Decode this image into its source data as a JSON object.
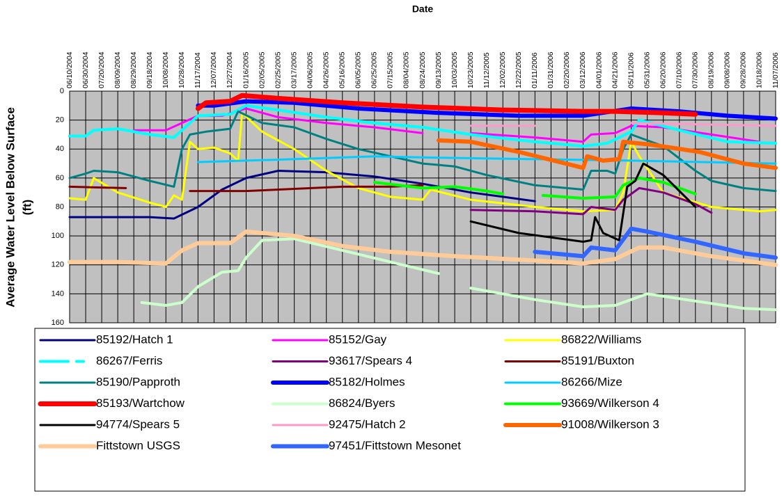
{
  "chart_data": {
    "type": "line",
    "title": "Date",
    "ylabel": [
      "Average Water Level Below Surface",
      "(ft)"
    ],
    "ylim": [
      0,
      160
    ],
    "yticks": [
      0,
      20,
      40,
      60,
      80,
      100,
      120,
      140,
      160
    ],
    "y_inverted": true,
    "grid": true,
    "xlim": [
      "06/10/2004",
      "11/07/2006"
    ],
    "xticks": [
      "06/10/2004",
      "06/30/2004",
      "07/20/2004",
      "08/09/2004",
      "08/29/2004",
      "09/18/2004",
      "10/08/2004",
      "10/28/2004",
      "11/17/2004",
      "12/07/2004",
      "12/27/2004",
      "01/16/2005",
      "02/05/2005",
      "02/25/2005",
      "03/17/2005",
      "04/06/2005",
      "04/26/2005",
      "05/16/2005",
      "06/05/2005",
      "06/25/2005",
      "07/15/2005",
      "08/04/2005",
      "08/24/2005",
      "09/13/2005",
      "10/03/2005",
      "10/23/2005",
      "11/12/2005",
      "12/02/2005",
      "12/22/2005",
      "01/11/2006",
      "01/31/2006",
      "02/20/2006",
      "03/12/2006",
      "04/01/2006",
      "04/21/2006",
      "05/11/2006",
      "05/31/2006",
      "06/20/2006",
      "07/10/2006",
      "07/30/2006",
      "08/19/2006",
      "09/08/2006",
      "09/28/2006",
      "10/18/2006",
      "11/07/2006"
    ],
    "series": [
      {
        "name": "85192/Hatch 1",
        "color": "#000080",
        "width": 3,
        "x": [
          "06/10/2004",
          "07/20/2004",
          "09/18/2004",
          "10/18/2004",
          "11/17/2004",
          "12/17/2004",
          "01/16/2005",
          "02/25/2005",
          "04/26/2005",
          "06/25/2005",
          "08/24/2005",
          "10/23/2005",
          "12/02/2005",
          "01/11/2006"
        ],
        "values": [
          87,
          87,
          87,
          88,
          80,
          68,
          60,
          55,
          56,
          59,
          64,
          70,
          73,
          76
        ]
      },
      {
        "name": "85152/Gay",
        "color": "#ff00ff",
        "width": 3,
        "x": [
          "08/29/2004",
          "10/08/2004",
          "10/28/2004",
          "11/17/2004",
          "12/17/2004",
          "01/16/2005",
          "02/25/2005",
          "04/26/2005",
          "06/25/2005",
          "08/24/2005",
          "09/13/2005",
          "10/23/2005",
          "01/11/2006",
          "03/12/2006",
          "03/22/2006",
          "04/21/2006",
          "05/11/2006",
          "06/20/2006",
          "08/19/2006",
          "10/18/2006"
        ],
        "values": [
          27,
          27,
          22,
          17,
          17,
          12,
          18,
          22,
          25,
          29,
          null,
          29,
          32,
          35,
          30,
          29,
          24,
          25,
          30,
          35
        ]
      },
      {
        "name": "86822/Williams",
        "color": "#ffff00",
        "width": 3,
        "x": [
          "06/10/2004",
          "06/30/2004",
          "07/10/2004",
          "08/09/2004",
          "09/18/2004",
          "10/08/2004",
          "10/18/2004",
          "10/28/2004",
          "11/07/2004",
          "11/17/2004",
          "12/07/2004",
          "12/27/2004",
          "01/06/2005",
          "01/11/2005",
          "02/05/2005",
          "03/17/2005",
          "04/26/2005",
          "06/05/2005",
          "07/15/2005",
          "08/24/2005",
          "09/03/2005",
          "10/23/2005",
          "01/11/2006",
          "03/12/2006",
          "04/21/2006",
          "05/01/2006",
          "05/11/2006",
          "05/21/2006",
          "06/20/2006",
          "08/19/2006",
          "10/18/2006",
          "11/07/2006"
        ],
        "values": [
          74,
          75,
          60,
          70,
          77,
          80,
          72,
          75,
          35,
          40,
          39,
          43,
          48,
          15,
          28,
          40,
          55,
          67,
          73,
          75,
          68,
          75,
          80,
          83,
          82,
          70,
          35,
          45,
          70,
          80,
          83,
          82
        ]
      },
      {
        "name": "86267/Ferris",
        "color": "#00ffff",
        "width": 4,
        "dash": true,
        "x": [
          "06/10/2004",
          "06/30/2004",
          "07/10/2004",
          "08/09/2004",
          "09/18/2004",
          "10/18/2004",
          "11/07/2004",
          "11/17/2004",
          "12/27/2004",
          "01/16/2005",
          "02/25/2005",
          "04/26/2005",
          "06/25/2005",
          "08/24/2005",
          "10/23/2005",
          "01/11/2006",
          "03/12/2006",
          "04/11/2006",
          "05/11/2006",
          "05/21/2006",
          "07/10/2006",
          "09/08/2006",
          "11/07/2006"
        ],
        "values": [
          31,
          31,
          27,
          26,
          30,
          32,
          22,
          17,
          16,
          10,
          13,
          18,
          22,
          25,
          30,
          35,
          38,
          36,
          28,
          20,
          27,
          35,
          36
        ]
      },
      {
        "name": "93617/Spears 4",
        "color": "#800080",
        "width": 3,
        "x": [
          "10/23/2005",
          "01/11/2006",
          "03/12/2006",
          "03/22/2006",
          "04/21/2006",
          "05/01/2006",
          "05/21/2006",
          "06/20/2006",
          "07/30/2006",
          "08/19/2006"
        ],
        "values": [
          82,
          83,
          85,
          80,
          82,
          75,
          67,
          70,
          78,
          84
        ]
      },
      {
        "name": "85191/Buxton",
        "color": "#800000",
        "width": 3,
        "x": [
          "06/10/2004",
          "08/19/2004",
          "10/08/2004",
          "11/07/2004",
          "01/16/2005",
          "05/16/2005",
          "07/15/2005",
          "08/24/2005"
        ],
        "values": [
          66,
          67,
          null,
          69,
          69,
          66,
          66,
          65
        ]
      },
      {
        "name": "85190/Papproth",
        "color": "#008080",
        "width": 3,
        "x": [
          "06/10/2004",
          "06/30/2004",
          "07/10/2004",
          "08/09/2004",
          "09/18/2004",
          "10/18/2004",
          "10/28/2004",
          "11/07/2004",
          "11/27/2004",
          "12/27/2004",
          "01/06/2005",
          "02/05/2005",
          "03/17/2005",
          "04/26/2005",
          "06/05/2005",
          "07/15/2005",
          "08/24/2005",
          "10/03/2005",
          "11/12/2005",
          "01/11/2006",
          "03/12/2006",
          "03/22/2006",
          "04/11/2006",
          "04/21/2006",
          "05/01/2006",
          "05/11/2006",
          "06/20/2006",
          "07/30/2006",
          "08/19/2006",
          "09/28/2006",
          "11/07/2006"
        ],
        "values": [
          60,
          57,
          55,
          56,
          62,
          66,
          40,
          30,
          28,
          26,
          14,
          22,
          25,
          33,
          40,
          45,
          50,
          52,
          58,
          65,
          68,
          55,
          55,
          57,
          40,
          30,
          38,
          55,
          62,
          67,
          69
        ]
      },
      {
        "name": "85182/Holmes",
        "color": "#0000ff",
        "width": 6,
        "x": [
          "11/17/2004",
          "12/07/2004",
          "01/16/2005",
          "03/17/2005",
          "06/05/2005",
          "09/13/2005",
          "12/22/2005",
          "03/12/2006",
          "05/11/2006",
          "07/10/2006",
          "09/08/2006",
          "11/07/2006"
        ],
        "values": [
          10,
          10,
          7,
          8,
          12,
          15,
          17,
          17,
          12,
          14,
          17,
          19
        ]
      },
      {
        "name": "86266/Mize",
        "color": "#00ccff",
        "width": 3,
        "x": [
          "11/17/2004",
          "03/17/2005",
          "06/25/2005",
          "09/13/2005",
          "01/11/2006",
          "05/11/2006",
          "11/07/2006"
        ],
        "values": [
          49,
          47,
          45,
          46,
          47,
          48,
          50
        ]
      },
      {
        "name": "85193/Wartchow",
        "color": "#ff0000",
        "width": 7,
        "x": [
          "11/17/2004",
          "11/27/2004",
          "12/27/2004",
          "01/11/2005",
          "02/25/2005",
          "05/16/2005",
          "08/24/2005",
          "12/02/2005",
          "03/12/2006",
          "04/21/2006",
          "06/20/2006",
          "07/30/2006"
        ],
        "values": [
          12,
          8,
          7,
          3,
          5,
          8,
          11,
          13,
          14,
          14,
          15,
          16
        ]
      },
      {
        "name": "86824/Byers",
        "color": "#ccffcc",
        "width": 4,
        "x": [
          "09/08/2004",
          "10/08/2004",
          "10/28/2004",
          "11/17/2004",
          "12/17/2004",
          "01/06/2005",
          "01/16/2005",
          "02/05/2005",
          "03/17/2005",
          "05/16/2005",
          "07/15/2005",
          "09/13/2005",
          "10/03/2005",
          "10/23/2005",
          "01/11/2006",
          "03/12/2006",
          "04/21/2006",
          "05/31/2006",
          "07/30/2006",
          "09/28/2006",
          "11/07/2006"
        ],
        "values": [
          146,
          148,
          146,
          135,
          125,
          124,
          115,
          103,
          102,
          110,
          118,
          126,
          null,
          136,
          144,
          149,
          148,
          140,
          145,
          150,
          151
        ]
      },
      {
        "name": "93669/Wilkerson 4",
        "color": "#00ff00",
        "width": 4,
        "x": [
          "06/25/2005",
          "08/24/2005",
          "10/03/2005",
          "11/12/2005",
          "12/02/2005",
          "12/22/2005",
          "01/21/2006",
          "03/12/2006",
          "04/21/2006",
          "05/01/2006",
          "05/21/2006",
          "06/20/2006",
          "07/30/2006"
        ],
        "values": [
          63,
          67,
          66,
          69,
          71,
          null,
          72,
          74,
          73,
          65,
          60,
          63,
          71
        ]
      },
      {
        "name": "94774/Spears 5",
        "color": "#000000",
        "width": 3,
        "x": [
          "10/23/2005",
          "12/22/2005",
          "03/12/2006",
          "03/22/2006",
          "03/27/2006",
          "04/06/2006",
          "04/26/2006",
          "05/06/2006",
          "05/16/2006",
          "05/26/2006",
          "06/20/2006",
          "07/30/2006"
        ],
        "values": [
          90,
          98,
          104,
          103,
          87,
          98,
          103,
          66,
          62,
          50,
          58,
          80
        ]
      },
      {
        "name": "92475/Hatch 2",
        "color": "#ff99cc",
        "width": 3,
        "x": [
          "10/23/2005",
          "01/11/2006",
          "03/12/2006",
          "05/11/2006",
          "11/07/2006"
        ],
        "values": [
          24,
          24,
          null,
          22,
          24
        ]
      },
      {
        "name": "91008/Wilkerson 3",
        "color": "#ff6600",
        "width": 6,
        "x": [
          "09/13/2005",
          "10/23/2005",
          "12/22/2005",
          "03/12/2006",
          "03/17/2006",
          "04/06/2006",
          "04/26/2006",
          "05/01/2006",
          "06/05/2006",
          "08/04/2006",
          "09/28/2006",
          "11/07/2006"
        ],
        "values": [
          34,
          35,
          42,
          53,
          45,
          48,
          47,
          35,
          37,
          42,
          50,
          53
        ]
      },
      {
        "name": "Fittstown USGS",
        "color": "#ffcc99",
        "width": 6,
        "x": [
          "06/10/2004",
          "08/09/2004",
          "10/08/2004",
          "10/28/2004",
          "11/17/2004",
          "12/27/2004",
          "01/16/2005",
          "03/17/2005",
          "05/16/2005",
          "07/15/2005",
          "10/03/2005",
          "01/11/2006",
          "03/12/2006",
          "04/21/2006",
          "05/21/2006",
          "06/20/2006",
          "08/19/2006",
          "11/07/2006"
        ],
        "values": [
          118,
          118,
          119,
          110,
          105,
          105,
          97,
          100,
          107,
          111,
          114,
          117,
          119,
          116,
          108,
          108,
          114,
          120
        ]
      },
      {
        "name": "97451/Fittstown Mesonet",
        "color": "#3366ff",
        "width": 6,
        "x": [
          "01/11/2006",
          "03/12/2006",
          "03/22/2006",
          "04/21/2006",
          "05/11/2006",
          "05/31/2006",
          "07/30/2006",
          "09/28/2006",
          "11/07/2006"
        ],
        "values": [
          111,
          114,
          108,
          110,
          95,
          97,
          104,
          112,
          115
        ]
      }
    ]
  }
}
